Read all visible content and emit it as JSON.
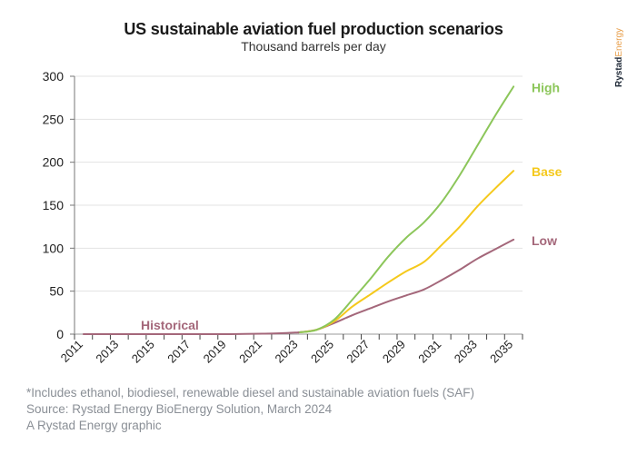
{
  "header": {
    "title": "US sustainable aviation fuel production scenarios",
    "subtitle": "Thousand barrels per day"
  },
  "brand": {
    "part1": "Rystad",
    "part2": "Energy",
    "colors": {
      "primary": "#222c3a",
      "accent": "#e8a04d"
    }
  },
  "footer": {
    "note": "*Includes ethanol, biodiesel, renewable diesel and sustainable aviation fuels (SAF)",
    "source": "Source: Rystad Energy BioEnergy Solution, March 2024",
    "credit": "A Rystad Energy graphic"
  },
  "chart_data": {
    "type": "line",
    "title": "US sustainable aviation fuel production scenarios",
    "subtitle": "Thousand barrels per day",
    "xlabel": "",
    "ylabel": "Thousand barrels per day",
    "ylim": [
      0,
      300
    ],
    "yticks": [
      0,
      50,
      100,
      150,
      200,
      250,
      300
    ],
    "x": [
      2011,
      2012,
      2013,
      2014,
      2015,
      2016,
      2017,
      2018,
      2019,
      2020,
      2021,
      2022,
      2023,
      2024,
      2025,
      2026,
      2027,
      2028,
      2029,
      2030,
      2031,
      2032,
      2033,
      2034,
      2035
    ],
    "xtick_labels": [
      "2011",
      "2013",
      "2015",
      "2017",
      "2019",
      "2021",
      "2023",
      "2025",
      "2027",
      "2029",
      "2031",
      "2033",
      "2035"
    ],
    "grid": "horizontal",
    "legend": "inline-right",
    "series": [
      {
        "name": "Historical",
        "color": "#a4677a",
        "x": [
          2011,
          2012,
          2013,
          2014,
          2015,
          2016,
          2017,
          2018,
          2019,
          2020,
          2021,
          2022,
          2023
        ],
        "values": [
          0,
          0,
          0,
          0,
          0,
          0,
          0,
          0,
          0,
          0.2,
          0.5,
          1,
          2
        ]
      },
      {
        "name": "High",
        "color": "#8cc65a",
        "x": [
          2023,
          2024,
          2025,
          2026,
          2027,
          2028,
          2029,
          2030,
          2031,
          2032,
          2033,
          2034,
          2035
        ],
        "values": [
          2,
          5,
          17,
          40,
          64,
          90,
          112,
          130,
          154,
          185,
          220,
          255,
          288
        ]
      },
      {
        "name": "Base",
        "color": "#f5c91c",
        "x": [
          2023,
          2024,
          2025,
          2026,
          2027,
          2028,
          2029,
          2030,
          2031,
          2032,
          2033,
          2034,
          2035
        ],
        "values": [
          2,
          5,
          15,
          32,
          46,
          60,
          73,
          84,
          104,
          125,
          149,
          170,
          190
        ]
      },
      {
        "name": "Low",
        "color": "#a4677a",
        "x": [
          2023,
          2024,
          2025,
          2026,
          2027,
          2028,
          2029,
          2030,
          2031,
          2032,
          2033,
          2034,
          2035
        ],
        "values": [
          2,
          5,
          13,
          22,
          30,
          38,
          45,
          52,
          63,
          75,
          88,
          99,
          110
        ]
      }
    ],
    "annotations": [
      {
        "text": "High",
        "series": "High"
      },
      {
        "text": "Base",
        "series": "Base"
      },
      {
        "text": "Low",
        "series": "Low"
      },
      {
        "text": "Historical",
        "series": "Historical"
      }
    ]
  }
}
